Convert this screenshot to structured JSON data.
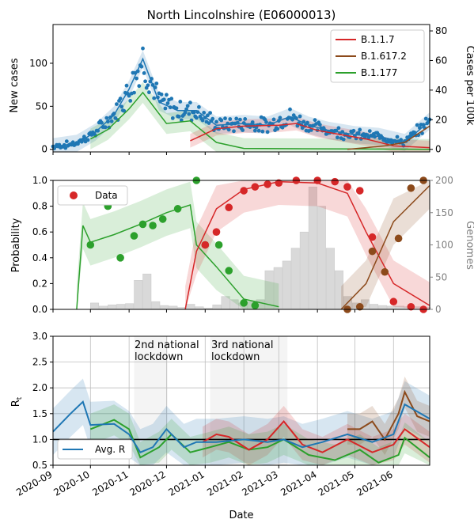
{
  "colors": {
    "blue": "#1f77b4",
    "red": "#d62728",
    "brown": "#8c4a1b",
    "green": "#2ca02c",
    "grey": "#808080",
    "hist": "#d9d9d9"
  },
  "chart_data": [
    {
      "type": "scatter",
      "title": "North Lincolnshire (E06000013)",
      "xlabel": "",
      "ylabel": "New cases",
      "ylabel_right": "Cases per 100k",
      "ylim": [
        -3,
        145
      ],
      "yticks": [
        "0",
        "50",
        "100"
      ],
      "yticks_right": [
        "0",
        "20",
        "40",
        "60",
        "80"
      ],
      "legend": {
        "placement": "top-right",
        "entries": [
          "B.1.1.7",
          "B.1.617.2",
          "B.1.177"
        ]
      },
      "series": [
        {
          "name": "B.1.1.7",
          "x": [
            "2020-12-20",
            "2021-01-10",
            "2021-02-01",
            "2021-03-01",
            "2021-03-15",
            "2021-04-01",
            "2021-04-20",
            "2021-05-10",
            "2021-06-01",
            "2021-06-30"
          ],
          "values": [
            10,
            24,
            27,
            28,
            30,
            22,
            17,
            12,
            4,
            2
          ]
        },
        {
          "name": "B.1.617.2",
          "x": [
            "2021-04-25",
            "2021-05-10",
            "2021-05-25",
            "2021-06-10",
            "2021-06-30"
          ],
          "values": [
            0,
            2,
            4,
            8,
            27
          ]
        },
        {
          "name": "B.1.177",
          "x": [
            "2020-10-01",
            "2020-10-15",
            "2020-11-01",
            "2020-11-12",
            "2020-12-01",
            "2020-12-20",
            "2021-01-10",
            "2021-02-01",
            "2021-06-30"
          ],
          "values": [
            12,
            23,
            47,
            66,
            30,
            33,
            8,
            1,
            0
          ]
        },
        {
          "name": "",
          "x": [
            "2020-09-01",
            "2020-09-20",
            "2020-10-05",
            "2020-10-20",
            "2020-11-01",
            "2020-11-12",
            "2020-11-25",
            "2020-12-10",
            "2020-12-25",
            "2021-01-10",
            "2021-02-01",
            "2021-02-20",
            "2021-03-10",
            "2021-03-25",
            "2021-04-10",
            "2021-05-01",
            "2021-05-20",
            "2021-06-10",
            "2021-06-30"
          ],
          "values": [
            3,
            7,
            20,
            40,
            70,
            105,
            55,
            45,
            45,
            28,
            30,
            28,
            38,
            28,
            22,
            17,
            15,
            8,
            33
          ]
        }
      ]
    },
    {
      "type": "line",
      "ylabel": "Probability",
      "ylabel_right": "Genomes",
      "ylim": [
        0,
        1
      ],
      "yticks": [
        "0.0",
        "0.2",
        "0.4",
        "0.6",
        "0.8",
        "1.0"
      ],
      "yticks_right": [
        "0",
        "50",
        "100",
        "150",
        "200"
      ],
      "legend": {
        "placement": "top-left",
        "entries": [
          "Data"
        ]
      },
      "series": [
        {
          "name": "B.1.177",
          "x": [
            "2020-09-20",
            "2020-09-25",
            "2020-10-01",
            "2020-10-20",
            "2020-11-10",
            "2020-12-01",
            "2020-12-20",
            "2020-12-25",
            "2021-01-10",
            "2021-02-01",
            "2021-03-01"
          ],
          "values": [
            0,
            0.65,
            0.52,
            0.58,
            0.66,
            0.75,
            0.81,
            0.5,
            0.33,
            0.08,
            0.02
          ]
        },
        {
          "name": "B.1.1.7",
          "x": [
            "2020-12-16",
            "2020-12-25",
            "2021-01-10",
            "2021-02-01",
            "2021-03-01",
            "2021-04-01",
            "2021-04-25",
            "2021-05-10",
            "2021-06-01",
            "2021-06-30"
          ],
          "values": [
            0,
            0.45,
            0.78,
            0.93,
            0.99,
            0.98,
            0.9,
            0.6,
            0.2,
            0.03
          ]
        },
        {
          "name": "B.1.617.2",
          "x": [
            "2021-04-20",
            "2021-05-10",
            "2021-06-01",
            "2021-06-30"
          ],
          "values": [
            0,
            0.2,
            0.68,
            0.96
          ]
        }
      ],
      "points": [
        {
          "variant": "green",
          "x": [
            "2020-10-01",
            "2020-10-15",
            "2020-10-25",
            "2020-11-05",
            "2020-11-12",
            "2020-11-20",
            "2020-11-28",
            "2020-12-10",
            "2020-12-25",
            "2021-01-01",
            "2021-01-12",
            "2021-01-20",
            "2021-02-01",
            "2021-02-10"
          ],
          "values": [
            0.5,
            0.8,
            0.4,
            0.57,
            0.66,
            0.65,
            0.7,
            0.78,
            1.0,
            0.5,
            0.5,
            0.3,
            0.05,
            0.03
          ]
        },
        {
          "variant": "red",
          "x": [
            "2021-01-01",
            "2021-01-10",
            "2021-01-20",
            "2021-02-01",
            "2021-02-10",
            "2021-02-20",
            "2021-03-01",
            "2021-03-15",
            "2021-04-01",
            "2021-04-15",
            "2021-04-25",
            "2021-05-05",
            "2021-05-15",
            "2021-06-01",
            "2021-06-15",
            "2021-06-25"
          ],
          "values": [
            0.5,
            0.6,
            0.79,
            0.92,
            0.95,
            0.97,
            0.98,
            1.0,
            1.0,
            0.99,
            0.95,
            0.92,
            0.56,
            0.06,
            0.02,
            0.0
          ]
        },
        {
          "variant": "brown",
          "x": [
            "2021-04-25",
            "2021-05-05",
            "2021-05-15",
            "2021-05-25",
            "2021-06-05",
            "2021-06-15",
            "2021-06-25"
          ],
          "values": [
            0.0,
            0.02,
            0.45,
            0.29,
            0.55,
            0.94,
            1.0
          ]
        }
      ],
      "genomes": {
        "x": [
          "2020-10-01",
          "2020-10-08",
          "2020-10-15",
          "2020-10-22",
          "2020-10-29",
          "2020-11-05",
          "2020-11-12",
          "2020-11-19",
          "2020-11-26",
          "2020-12-03",
          "2020-12-10",
          "2020-12-17",
          "2020-12-24",
          "2020-12-31",
          "2021-01-07",
          "2021-01-14",
          "2021-01-21",
          "2021-01-28",
          "2021-02-04",
          "2021-02-11",
          "2021-02-18",
          "2021-02-25",
          "2021-03-04",
          "2021-03-11",
          "2021-03-18",
          "2021-03-25",
          "2021-04-01",
          "2021-04-08",
          "2021-04-15",
          "2021-04-22",
          "2021-04-29",
          "2021-05-06",
          "2021-05-13",
          "2021-05-20",
          "2021-05-27",
          "2021-06-03",
          "2021-06-10",
          "2021-06-17",
          "2021-06-24"
        ],
        "values": [
          10,
          5,
          7,
          8,
          9,
          45,
          55,
          12,
          6,
          5,
          3,
          8,
          4,
          2,
          7,
          20,
          15,
          10,
          12,
          15,
          60,
          65,
          75,
          95,
          120,
          190,
          160,
          95,
          60,
          20,
          10,
          15,
          8,
          6,
          5,
          5,
          4,
          4,
          3
        ]
      }
    },
    {
      "type": "line",
      "xlabel": "Date",
      "ylabel": "R",
      "ylabel_sub": "t",
      "ylim": [
        0.5,
        3.0
      ],
      "yticks": [
        "0.5",
        "1.0",
        "1.5",
        "2.0",
        "2.5",
        "3.0"
      ],
      "xticks": [
        "2020-09",
        "2020-10",
        "2020-11",
        "2020-12",
        "2021-01",
        "2021-02",
        "2021-03",
        "2021-04",
        "2021-05",
        "2021-06"
      ],
      "legend": {
        "placement": "bottom-left",
        "entries": [
          "Avg. R"
        ]
      },
      "annotations": [
        {
          "text": "2nd national\nlockdown",
          "start": "2020-11-05",
          "end": "2020-12-02"
        },
        {
          "text": "3rd national\nlockdown",
          "start": "2021-01-05",
          "end": "2021-03-08"
        }
      ],
      "series": [
        {
          "name": "Avg. R",
          "x": [
            "2020-09-01",
            "2020-09-15",
            "2020-09-25",
            "2020-10-01",
            "2020-10-20",
            "2020-11-01",
            "2020-11-10",
            "2020-11-20",
            "2020-12-01",
            "2020-12-15",
            "2020-12-25",
            "2021-01-10",
            "2021-02-01",
            "2021-02-20",
            "2021-03-05",
            "2021-03-20",
            "2021-04-05",
            "2021-04-25",
            "2021-05-15",
            "2021-06-01",
            "2021-06-10",
            "2021-06-30"
          ],
          "values": [
            1.15,
            1.5,
            1.73,
            1.28,
            1.3,
            1.1,
            0.75,
            0.85,
            1.2,
            0.85,
            0.95,
            0.95,
            1.0,
            0.95,
            1.0,
            0.85,
            0.95,
            1.1,
            0.95,
            1.1,
            1.68,
            1.4
          ]
        },
        {
          "name": "B.1.1.7",
          "x": [
            "2020-12-30",
            "2021-01-10",
            "2021-01-20",
            "2021-02-05",
            "2021-02-20",
            "2021-03-05",
            "2021-03-20",
            "2021-04-05",
            "2021-04-25",
            "2021-05-15",
            "2021-06-01",
            "2021-06-10",
            "2021-06-30"
          ],
          "values": [
            0.95,
            1.1,
            1.05,
            0.8,
            1.0,
            1.35,
            0.9,
            0.75,
            1.0,
            0.75,
            0.9,
            1.2,
            0.85
          ]
        },
        {
          "name": "B.1.617.2",
          "x": [
            "2021-04-25",
            "2021-05-05",
            "2021-05-15",
            "2021-05-25",
            "2021-06-05",
            "2021-06-10",
            "2021-06-20",
            "2021-06-30"
          ],
          "values": [
            1.2,
            1.2,
            1.35,
            1.0,
            1.5,
            1.92,
            1.45,
            1.35
          ]
        },
        {
          "name": "B.1.177",
          "x": [
            "2020-10-01",
            "2020-10-20",
            "2020-11-01",
            "2020-11-10",
            "2020-11-25",
            "2020-12-05",
            "2020-12-20",
            "2021-01-05",
            "2021-01-20",
            "2021-02-05",
            "2021-02-20",
            "2021-03-05",
            "2021-03-25",
            "2021-04-15",
            "2021-05-05",
            "2021-05-20",
            "2021-06-05",
            "2021-06-10",
            "2021-06-30"
          ],
          "values": [
            1.2,
            1.38,
            1.2,
            0.65,
            0.85,
            1.1,
            0.75,
            0.85,
            0.95,
            0.8,
            0.85,
            1.0,
            0.7,
            0.6,
            0.8,
            0.55,
            0.7,
            1.03,
            0.65
          ]
        }
      ]
    }
  ]
}
